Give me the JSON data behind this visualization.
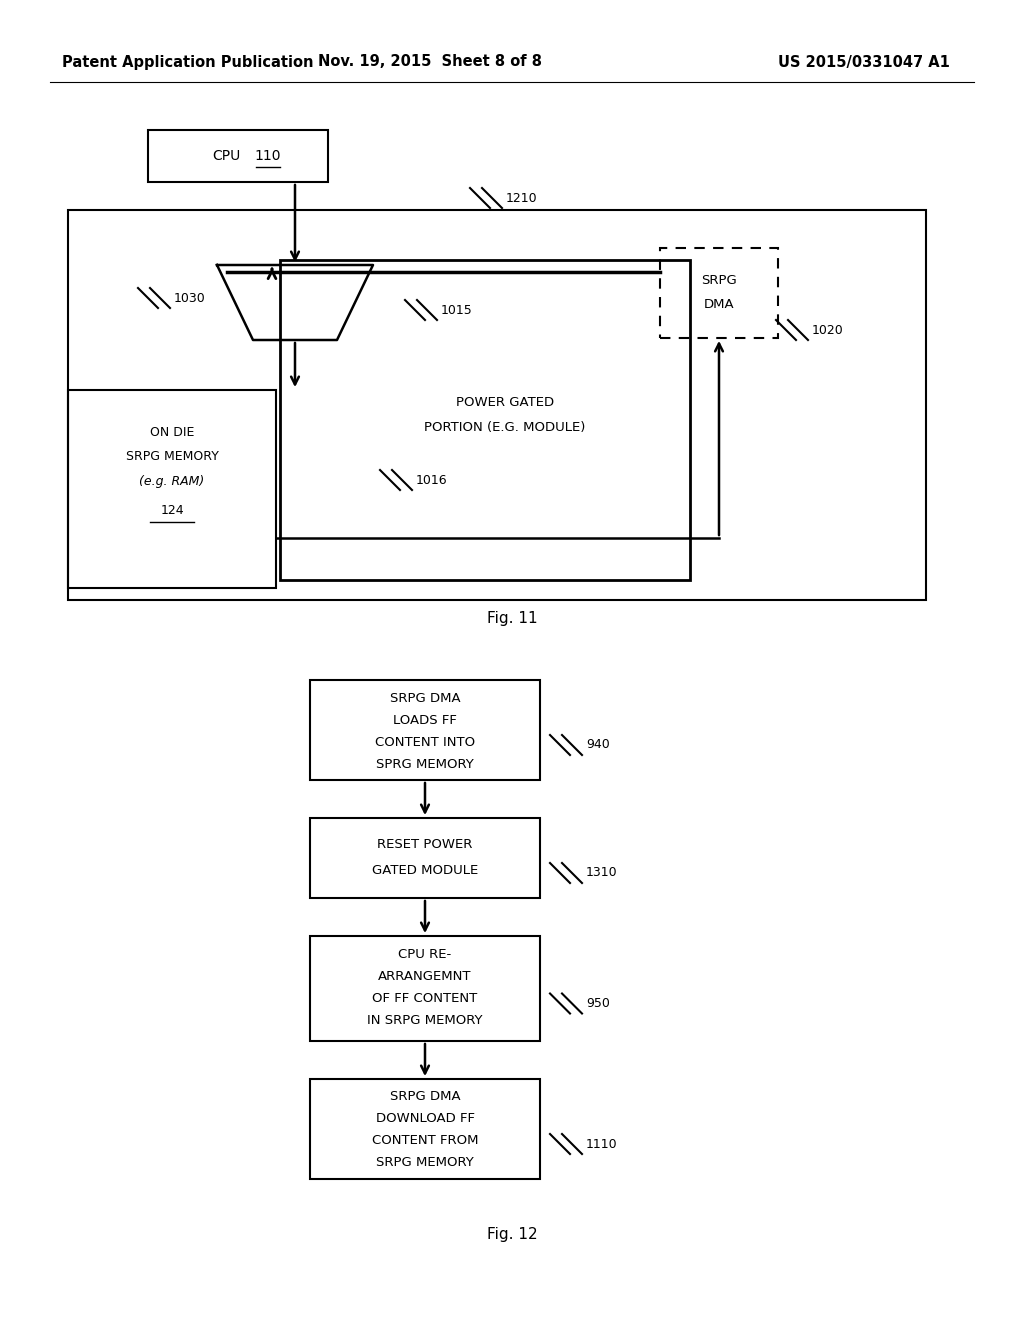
{
  "background_color": "#ffffff",
  "header": {
    "left": "Patent Application Publication",
    "center": "Nov. 19, 2015  Sheet 8 of 8",
    "right": "US 2015/0331047 A1",
    "font_size": 10.5
  }
}
